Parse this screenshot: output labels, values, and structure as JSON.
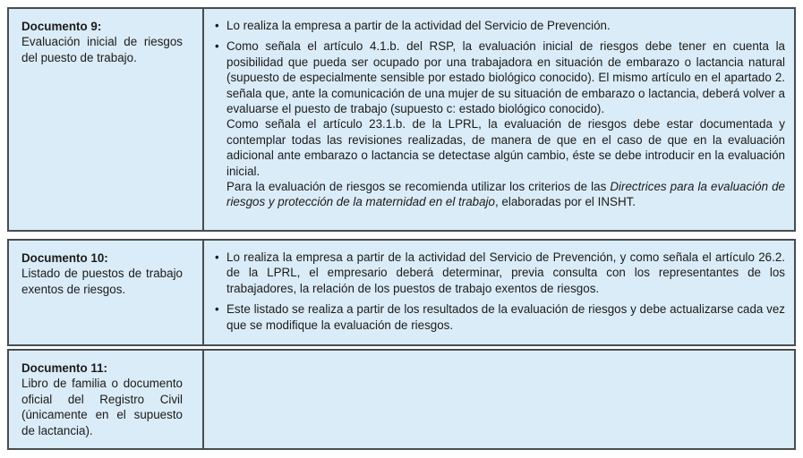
{
  "ui": {
    "bullet_char": "•",
    "colors": {
      "cell_background": "#daecf7",
      "border": "#474d50",
      "text": "#1b1b1b",
      "page_background": "#ffffff"
    }
  },
  "rows": [
    {
      "label": {
        "title": "Documento 9:",
        "desc": "Evaluación inicial de ries­gos del puesto de trabajo."
      },
      "content": {
        "b1": "Lo realiza la empresa a partir de la actividad del Servicio de Prevención.",
        "b2_p1": "Como señala el artículo 4.1.b. del RSP, la evaluación inicial de riesgos debe tener en cuenta la posibilidad que pueda ser ocupado por una trabajadora en situación de embarazo o lactancia natural (supuesto de especialmente sensible por estado biológico conocido). El mismo artículo en el apartado 2. señala que, ante la comunicación de una mujer de su situación de embara­zo o lactancia, deberá volver a evaluarse el puesto de trabajo (supuesto c: estado biológico conocido).",
        "b2_p2": "Como señala el artículo 23.1.b. de la LPRL, la evaluación de riesgos debe estar documentada y contemplar todas las revisiones realizadas, de manera de que en el caso de que en la eva­luación adicional ante embarazo o lactancia se detectase algún cambio, éste se debe introducir en la evaluación inicial.",
        "b2_p3_pre": "Para la evaluación de riesgos se recomienda utilizar los criterios de las ",
        "b2_p3_italic": "Directrices para la evaluación de riesgos y protección de la maternidad en el trabajo",
        "b2_p3_post": ", elaboradas por el INSHT."
      }
    },
    {
      "label": {
        "title": "Documento 10:",
        "desc": "Listado de puestos de tra­bajo exentos de riesgos."
      },
      "content": {
        "b1": "Lo realiza la empresa a partir de la actividad del Servicio de Prevención, y como señala el artí­culo 26.2. de la LPRL, el empresario deberá determinar, previa consulta con los representantes de los trabajadores, la relación de los puestos de trabajo exentos de riesgos.",
        "b2": "Este listado se realiza a partir de los resultados de la evaluación de riesgos y debe actualizarse cada vez que se modifique la evaluación de riesgos."
      }
    },
    {
      "label": {
        "title": "Documento 11:",
        "desc": "Libro de familia o documen­to oficial del Registro Civil (únicamente en el supuesto de lactancia)."
      },
      "content": {}
    }
  ]
}
